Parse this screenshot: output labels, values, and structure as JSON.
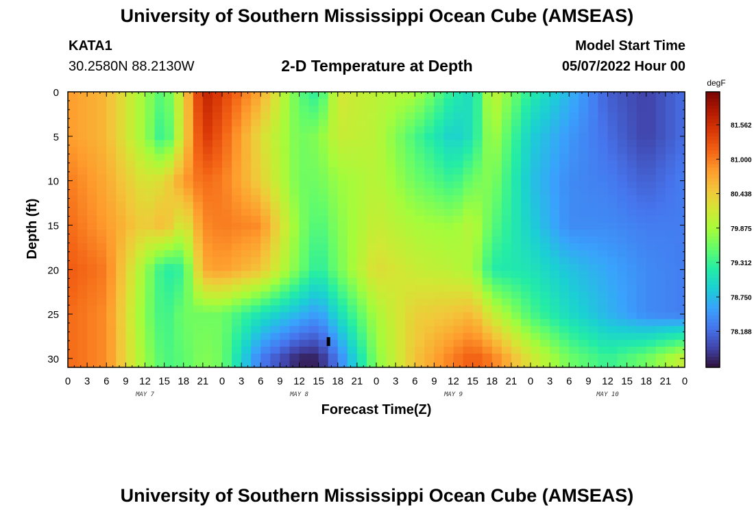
{
  "header": {
    "title": "University of Southern Mississippi Ocean Cube (AMSEAS)",
    "station": "KATA1",
    "coordinates": "30.2580N  88.2130W",
    "subtitle": "2-D Temperature at Depth",
    "start_label": "Model Start Time",
    "start_value": "05/07/2022 Hour 00"
  },
  "footer": {
    "title": "University of Southern Mississippi Ocean Cube (AMSEAS)"
  },
  "chart_data": {
    "type": "heatmap",
    "xlabel": "Forecast Time(Z)",
    "ylabel": "Depth (ft)",
    "x_range_hours": [
      0,
      96
    ],
    "y_range_ft": [
      0,
      31
    ],
    "y_reversed": true,
    "x_tick_labels": [
      "0",
      "3",
      "6",
      "9",
      "12",
      "15",
      "18",
      "21",
      "0",
      "3",
      "6",
      "9",
      "12",
      "15",
      "18",
      "21",
      "0",
      "3",
      "6",
      "9",
      "12",
      "15",
      "18",
      "21",
      "0",
      "3",
      "6",
      "9",
      "12",
      "15",
      "18",
      "21",
      "0"
    ],
    "y_tick_labels": [
      "0",
      "5",
      "10",
      "15",
      "20",
      "25",
      "30"
    ],
    "y_tick_values": [
      0,
      5,
      10,
      15,
      20,
      25,
      30
    ],
    "day_labels": [
      "MAY 7",
      "MAY 8",
      "MAY 9",
      "MAY 10"
    ],
    "colorbar": {
      "unit": "degF",
      "min": 77.6,
      "max": 82.1,
      "tick_values": [
        81.562,
        81.0,
        80.438,
        79.875,
        79.312,
        78.75,
        78.188
      ],
      "tick_labels": [
        "81.562",
        "81.000",
        "80.438",
        "79.875",
        "79.312",
        "78.750",
        "78.188"
      ],
      "colors": [
        "#30123b",
        "#4145ab",
        "#4675ed",
        "#39a2fc",
        "#1bcfd4",
        "#24eca6",
        "#61fc6c",
        "#a4fc3b",
        "#d1e834",
        "#f3c63a",
        "#fe9b2d",
        "#f36315",
        "#d93806",
        "#b11901",
        "#7a0402"
      ]
    },
    "field_samples": {
      "note": "approximate temperature (degF) at forecast hour x and depth (ft)",
      "depths_ft": [
        0,
        5,
        10,
        15,
        20,
        25,
        30
      ],
      "hours": [
        0,
        6,
        12,
        15,
        18,
        21,
        24,
        30,
        36,
        39,
        42,
        48,
        54,
        60,
        63,
        66,
        72,
        78,
        84,
        90,
        96
      ],
      "rows": [
        [
          80.8,
          80.6,
          79.8,
          79.4,
          80.3,
          81.7,
          81.4,
          80.7,
          79.5,
          79.2,
          80.2,
          80.0,
          79.9,
          79.2,
          79.0,
          80.1,
          79.2,
          78.7,
          78.1,
          77.9,
          78.2
        ],
        [
          80.8,
          80.6,
          79.8,
          79.2,
          80.3,
          81.5,
          81.2,
          80.3,
          79.6,
          79.7,
          80.1,
          80.0,
          79.4,
          78.9,
          79.1,
          79.9,
          78.9,
          78.5,
          78.2,
          77.9,
          78.2
        ],
        [
          81.0,
          80.7,
          80.2,
          80.3,
          80.8,
          81.1,
          81.0,
          80.4,
          79.6,
          79.6,
          79.8,
          80.0,
          79.6,
          79.3,
          79.6,
          79.7,
          78.8,
          78.4,
          78.3,
          78.1,
          78.3
        ],
        [
          81.1,
          80.8,
          80.4,
          80.6,
          80.1,
          80.9,
          81.0,
          80.9,
          79.7,
          79.4,
          79.7,
          80.1,
          79.9,
          79.8,
          80.0,
          79.5,
          78.9,
          78.4,
          78.4,
          78.3,
          78.3
        ],
        [
          81.2,
          81.0,
          79.8,
          79.2,
          79.3,
          80.7,
          80.8,
          80.5,
          79.6,
          79.2,
          79.6,
          80.3,
          80.1,
          80.0,
          79.9,
          79.2,
          79.1,
          78.8,
          78.6,
          78.4,
          78.3
        ],
        [
          81.1,
          80.9,
          79.7,
          79.3,
          79.6,
          79.6,
          79.6,
          79.1,
          78.7,
          78.5,
          79.0,
          79.9,
          80.4,
          80.5,
          80.6,
          80.1,
          79.4,
          79.0,
          78.7,
          78.4,
          78.3
        ],
        [
          81.1,
          80.9,
          79.8,
          79.4,
          79.5,
          79.7,
          79.6,
          78.3,
          77.7,
          77.7,
          78.3,
          79.7,
          80.5,
          81.0,
          81.2,
          81.0,
          80.2,
          79.6,
          79.3,
          79.6,
          80.1
        ]
      ]
    }
  }
}
